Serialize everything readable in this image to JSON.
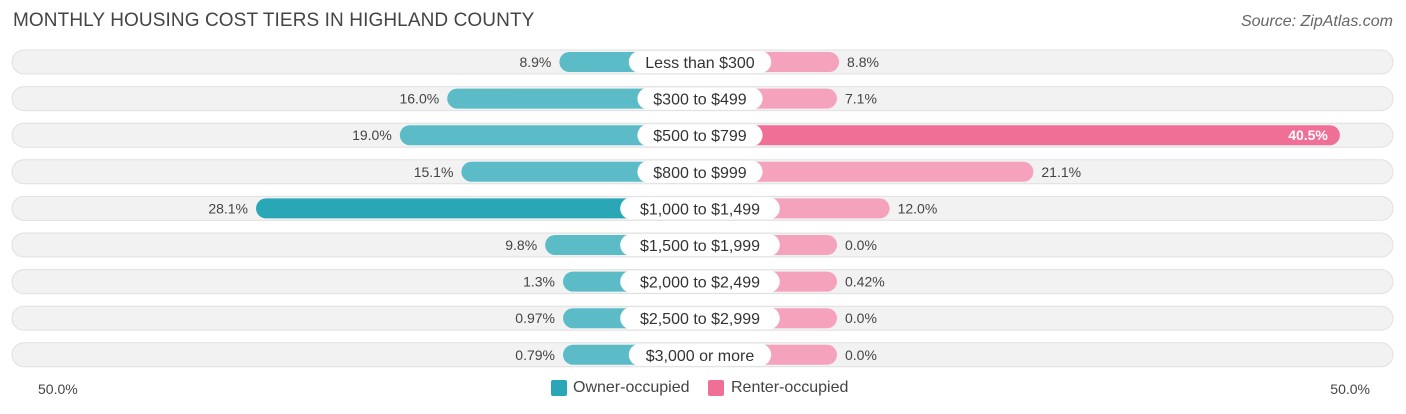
{
  "chart_data": {
    "type": "bar",
    "orientation": "horizontal-diverging",
    "title": "MONTHLY HOUSING COST TIERS IN HIGHLAND COUNTY",
    "source": "Source: ZipAtlas.com",
    "categories": [
      "Less than $300",
      "$300 to $499",
      "$500 to $799",
      "$800 to $999",
      "$1,000 to $1,499",
      "$1,500 to $1,999",
      "$2,000 to $2,499",
      "$2,500 to $2,999",
      "$3,000 or more"
    ],
    "series": [
      {
        "name": "Owner-occupied",
        "values": [
          8.9,
          16.0,
          19.0,
          15.1,
          28.1,
          9.8,
          1.3,
          0.97,
          0.79
        ],
        "labels": [
          "8.9%",
          "16.0%",
          "19.0%",
          "15.1%",
          "28.1%",
          "9.8%",
          "1.3%",
          "0.97%",
          "0.79%"
        ]
      },
      {
        "name": "Renter-occupied",
        "values": [
          8.8,
          7.1,
          40.5,
          21.1,
          12.0,
          0.0,
          0.42,
          0.0,
          0.0
        ],
        "labels": [
          "8.8%",
          "7.1%",
          "40.5%",
          "21.1%",
          "12.0%",
          "0.0%",
          "0.42%",
          "0.0%",
          "0.0%"
        ]
      }
    ],
    "axis": {
      "min_label": "50.0%",
      "max_label": "50.0%",
      "range": [
        0,
        50
      ]
    },
    "legend": {
      "position": "bottom-center"
    },
    "colors": {
      "owner": "#5bbcc8",
      "owner_strong": "#2aa7b7",
      "renter": "#f5a3bd",
      "renter_strong": "#f06f96",
      "row_bg": "#f2f2f2",
      "row_border": "#e0e0e0"
    }
  }
}
